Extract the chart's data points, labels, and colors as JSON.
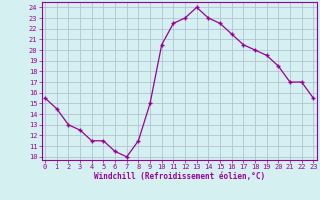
{
  "x": [
    0,
    1,
    2,
    3,
    4,
    5,
    6,
    7,
    8,
    9,
    10,
    11,
    12,
    13,
    14,
    15,
    16,
    17,
    18,
    19,
    20,
    21,
    22,
    23
  ],
  "y": [
    15.5,
    14.5,
    13.0,
    12.5,
    11.5,
    11.5,
    10.5,
    10.0,
    11.5,
    15.0,
    20.5,
    22.5,
    23.0,
    24.0,
    23.0,
    22.5,
    21.5,
    20.5,
    20.0,
    19.5,
    18.5,
    17.0,
    17.0,
    15.5
  ],
  "line_color": "#990099",
  "marker": "+",
  "bg_color": "#d4f0f0",
  "grid_color": "#b0b8d0",
  "xlabel": "Windchill (Refroidissement éolien,°C)",
  "ylabel_ticks": [
    10,
    11,
    12,
    13,
    14,
    15,
    16,
    17,
    18,
    19,
    20,
    21,
    22,
    23,
    24
  ],
  "xticks": [
    0,
    1,
    2,
    3,
    4,
    5,
    6,
    7,
    8,
    9,
    10,
    11,
    12,
    13,
    14,
    15,
    16,
    17,
    18,
    19,
    20,
    21,
    22,
    23
  ],
  "ylim": [
    9.7,
    24.5
  ],
  "xlim": [
    -0.3,
    23.3
  ],
  "tick_color": "#990099",
  "xlabel_color": "#990099",
  "spine_color": "#990099",
  "tick_fontsize": 5.0,
  "xlabel_fontsize": 5.5,
  "linewidth": 0.9,
  "markersize": 3.5,
  "markeredgewidth": 1.0
}
